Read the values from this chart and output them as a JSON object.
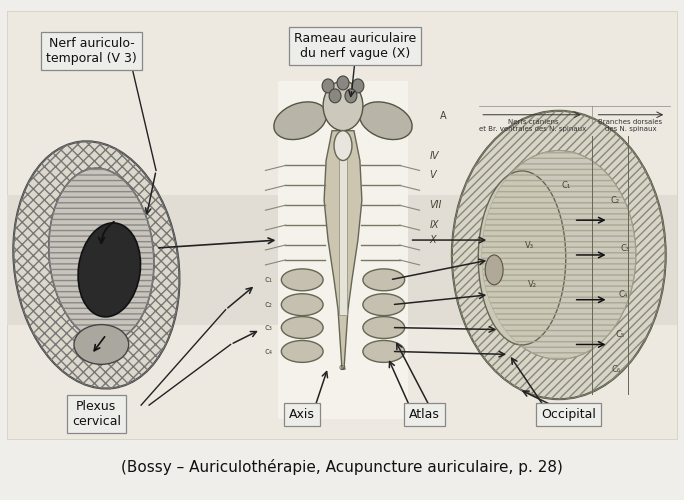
{
  "caption": "(Bossy – Auriculothérapie, Acupuncture auriculaire, p. 28)",
  "caption_fontsize": 11,
  "bg_color": "#f0eeea",
  "label_nerf_auriculo": "Nerf auriculo-\ntemporal (V 3)",
  "label_rameau": "Rameau auriculaire\ndu nerf vague (X)",
  "label_plexus": "Plexus\ncervical",
  "label_axis": "Axis",
  "label_atlas": "Atlas",
  "label_occipital": "Occipital",
  "label_nerfs_craniens": "Nerfs crâniens\net Br. ventrales des N. spinaux",
  "label_branches_dorsales": "Branches dorsales\ndes N. spinaux",
  "fig_width": 6.84,
  "fig_height": 5.0
}
